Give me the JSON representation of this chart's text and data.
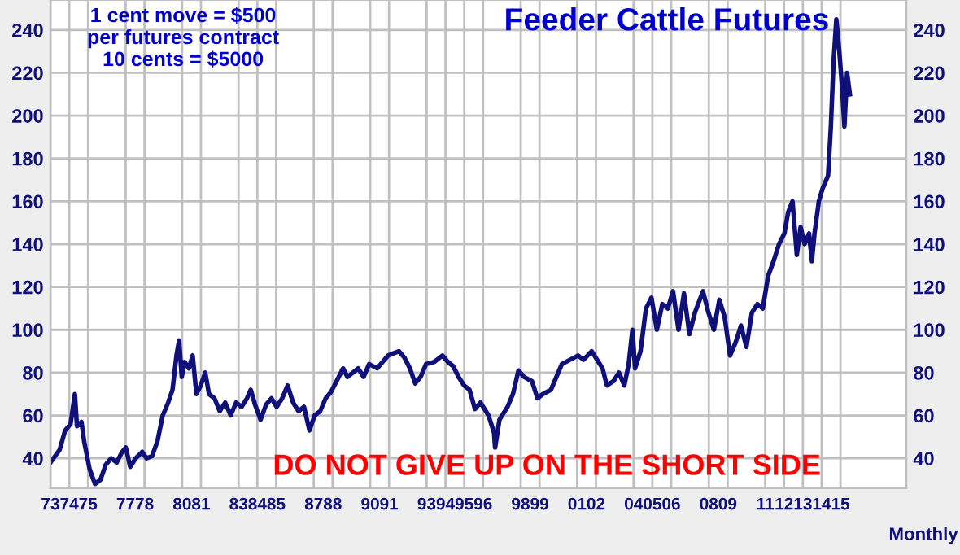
{
  "chart_data": {
    "type": "line",
    "title": "Feeder Cattle Futures",
    "annotations": [
      "1 cent move = $500\nper futures contract\n10 cents = $5000",
      "DO NOT GIVE UP ON THE SHORT SIDE",
      "Monthly"
    ],
    "xlim": [
      1973,
      2018.5
    ],
    "ylim": [
      26,
      254
    ],
    "xticks": [
      {
        "value": 1973,
        "label": "73"
      },
      {
        "value": 1974,
        "label": "74"
      },
      {
        "value": 1975,
        "label": "75"
      },
      {
        "value": 1977,
        "label": "77"
      },
      {
        "value": 1978,
        "label": "78"
      },
      {
        "value": 1980,
        "label": "80"
      },
      {
        "value": 1981,
        "label": "81"
      },
      {
        "value": 1983,
        "label": "83"
      },
      {
        "value": 1984,
        "label": "84"
      },
      {
        "value": 1985,
        "label": "85"
      },
      {
        "value": 1987,
        "label": "87"
      },
      {
        "value": 1988,
        "label": "88"
      },
      {
        "value": 1990,
        "label": "90"
      },
      {
        "value": 1991,
        "label": "91"
      },
      {
        "value": 1993,
        "label": "93"
      },
      {
        "value": 1994,
        "label": "94"
      },
      {
        "value": 1995,
        "label": "95"
      },
      {
        "value": 1996,
        "label": "96"
      },
      {
        "value": 1998,
        "label": "98"
      },
      {
        "value": 1999,
        "label": "99"
      },
      {
        "value": 2001,
        "label": "01"
      },
      {
        "value": 2002,
        "label": "02"
      },
      {
        "value": 2004,
        "label": "04"
      },
      {
        "value": 2005,
        "label": "05"
      },
      {
        "value": 2006,
        "label": "06"
      },
      {
        "value": 2008,
        "label": "08"
      },
      {
        "value": 2009,
        "label": "09"
      },
      {
        "value": 2011,
        "label": "11"
      },
      {
        "value": 2012,
        "label": "12"
      },
      {
        "value": 2013,
        "label": "13"
      },
      {
        "value": 2014,
        "label": "14"
      },
      {
        "value": 2015,
        "label": "15"
      }
    ],
    "yticks": [
      40,
      60,
      80,
      100,
      120,
      140,
      160,
      180,
      200,
      220,
      240
    ],
    "y2lim": [
      26,
      254
    ],
    "y2ticks": [
      40,
      60,
      80,
      100,
      120,
      140,
      160,
      180,
      200,
      220,
      240
    ],
    "grid": true,
    "legend": false,
    "marker": "none",
    "line_style": "solid",
    "series": [
      {
        "color": "#10107a",
        "x": [
          1973.0,
          1973.49,
          1973.78,
          1974.07,
          1974.3,
          1974.41,
          1974.65,
          1974.79,
          1975.08,
          1975.37,
          1975.66,
          1975.94,
          1976.23,
          1976.52,
          1976.81,
          1977.01,
          1977.24,
          1977.53,
          1977.88,
          1978.11,
          1978.4,
          1978.69,
          1978.97,
          1979.26,
          1979.49,
          1979.7,
          1979.84,
          1979.98,
          1980.13,
          1980.36,
          1980.56,
          1980.76,
          1980.99,
          1981.23,
          1981.43,
          1981.72,
          1982.0,
          1982.29,
          1982.58,
          1982.87,
          1983.16,
          1983.45,
          1983.65,
          1983.88,
          1984.17,
          1984.46,
          1984.75,
          1985.03,
          1985.32,
          1985.61,
          1985.9,
          1986.19,
          1986.48,
          1986.77,
          1987.05,
          1987.34,
          1987.63,
          1987.92,
          1988.21,
          1988.56,
          1988.79,
          1989.08,
          1989.36,
          1989.65,
          1989.94,
          1990.37,
          1990.66,
          1990.95,
          1991.24,
          1991.53,
          1991.82,
          1992.11,
          1992.39,
          1992.68,
          1992.97,
          1993.4,
          1993.84,
          1994.13,
          1994.41,
          1994.7,
          1994.99,
          1995.28,
          1995.57,
          1995.86,
          1996.15,
          1996.29,
          1996.58,
          1996.64,
          1996.87,
          1997.3,
          1997.59,
          1997.88,
          1998.17,
          1998.6,
          1998.89,
          1999.18,
          1999.61,
          1999.9,
          2000.19,
          2000.62,
          2001.05,
          2001.34,
          2001.77,
          2002.06,
          2002.35,
          2002.58,
          2002.93,
          2003.22,
          2003.51,
          2003.74,
          2003.94,
          2004.08,
          2004.37,
          2004.66,
          2004.95,
          2005.24,
          2005.53,
          2005.82,
          2006.1,
          2006.39,
          2006.68,
          2006.97,
          2007.26,
          2007.69,
          2007.98,
          2008.27,
          2008.56,
          2008.84,
          2009.13,
          2009.42,
          2009.71,
          2010.0,
          2010.29,
          2010.58,
          2010.87,
          2011.15,
          2011.44,
          2011.73,
          2012.02,
          2012.22,
          2012.45,
          2012.68,
          2012.88,
          2013.09,
          2013.33,
          2013.48,
          2013.62,
          2013.85,
          2014.05,
          2014.34,
          2014.49,
          2014.63,
          2014.78,
          2014.92,
          2015.07,
          2015.21,
          2015.35,
          2015.5
        ],
        "values": [
          38,
          44,
          53,
          56,
          70,
          55,
          57,
          48,
          35,
          28,
          30,
          37,
          40,
          38,
          43,
          45,
          36,
          40,
          43,
          40,
          41,
          48,
          60,
          66,
          72,
          88,
          95,
          78,
          85,
          82,
          88,
          70,
          74,
          80,
          70,
          68,
          62,
          66,
          60,
          66,
          64,
          68,
          72,
          65,
          58,
          65,
          68,
          64,
          68,
          74,
          66,
          62,
          64,
          53,
          60,
          62,
          68,
          71,
          76,
          82,
          78,
          80,
          82,
          78,
          84,
          82,
          85,
          88,
          89,
          90,
          87,
          82,
          75,
          78,
          84,
          85,
          88,
          85,
          83,
          78,
          74,
          72,
          63,
          66,
          62,
          60,
          52,
          45,
          58,
          64,
          70,
          81,
          78,
          76,
          68,
          70,
          72,
          78,
          84,
          86,
          88,
          86,
          90,
          86,
          82,
          74,
          76,
          80,
          74,
          84,
          100,
          82,
          90,
          110,
          115,
          100,
          112,
          110,
          118,
          100,
          117,
          98,
          108,
          118,
          108,
          100,
          114,
          106,
          88,
          94,
          102,
          92,
          108,
          112,
          110,
          125,
          132,
          140,
          145,
          155,
          160,
          135,
          148,
          140,
          145,
          132,
          145,
          160,
          166,
          172,
          195,
          225,
          245,
          232,
          215,
          195,
          220,
          210
        ]
      }
    ]
  }
}
